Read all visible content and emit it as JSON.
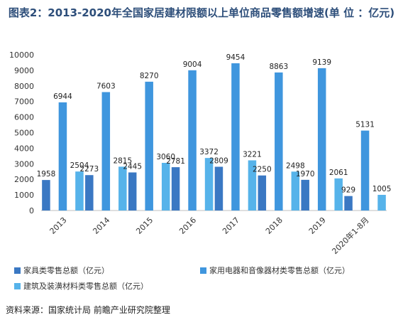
{
  "title": "图表2：2013-2020年全国家居建材限额以上单位商品零售额增速(单 位 ：亿元)",
  "source": "资料来源：国家统计局 前瞻产业研究院整理",
  "chart_data": {
    "type": "bar",
    "title": "图表2：2013-2020年全国家居建材限额以上单位商品零售额增速(单 位 ：亿元)",
    "categories": [
      "2013",
      "2014",
      "2015",
      "2016",
      "2017",
      "2018",
      "2019",
      "2020年1-8月"
    ],
    "series": [
      {
        "name": "家具类零售总额（亿元）",
        "color": "#3a78c3",
        "values": [
          1958,
          2273,
          2445,
          2781,
          2809,
          2250,
          1970,
          929
        ]
      },
      {
        "name": "家用电器和音像器材类零售总额（亿元）",
        "color": "#3f96de",
        "values": [
          6944,
          7603,
          8270,
          9004,
          9454,
          8863,
          9139,
          5131
        ]
      },
      {
        "name": "建筑及装潢材料类零售总额（亿元）",
        "color": "#56b3ea",
        "values": [
          2504,
          2815,
          3060,
          3372,
          3221,
          2498,
          2061,
          1005
        ]
      }
    ],
    "ylim": [
      0,
      10000
    ],
    "yticks": [
      0,
      1000,
      2000,
      3000,
      4000,
      5000,
      6000,
      7000,
      8000,
      9000,
      10000
    ],
    "grid": false,
    "legend_position": "bottom"
  }
}
